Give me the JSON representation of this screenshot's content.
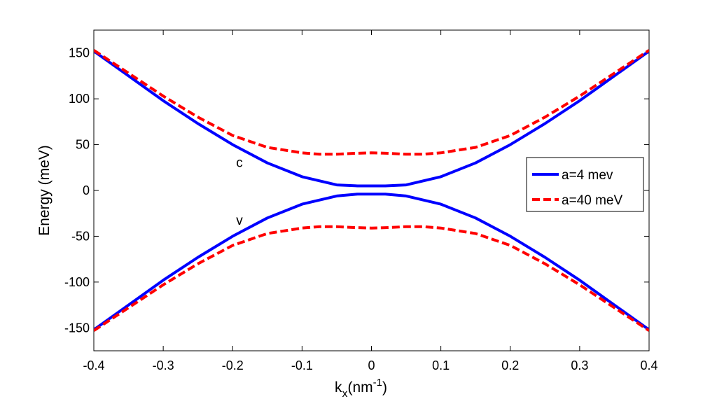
{
  "chart_data": {
    "type": "line",
    "title": "",
    "xlabel_main": "k",
    "xlabel_sub": "x",
    "xlabel_rest": "(nm",
    "xlabel_sup": "-1",
    "xlabel_close": ")",
    "ylabel": "Energy (meV)",
    "xlim": [
      -0.4,
      0.4
    ],
    "ylim": [
      -175,
      175
    ],
    "xticks": [
      -0.4,
      -0.3,
      -0.2,
      -0.1,
      0,
      0.1,
      0.2,
      0.3,
      0.4
    ],
    "xtick_labels": [
      "-0.4",
      "-0.3",
      "-0.2",
      "-0.1",
      "0",
      "0.1",
      "0.2",
      "0.3",
      "0.4"
    ],
    "yticks": [
      -150,
      -100,
      -50,
      0,
      50,
      100,
      150
    ],
    "ytick_labels": [
      "-150",
      "-100",
      "-50",
      "0",
      "50",
      "100",
      "150"
    ],
    "legend_position": "right",
    "colors": {
      "blue": "#0000ff",
      "red": "#ff0000"
    },
    "series": [
      {
        "name": "a=4 mev",
        "style": "solid",
        "color": "#0000ff",
        "branches": [
          {
            "x": [
              -0.4,
              -0.35,
              -0.3,
              -0.25,
              -0.2,
              -0.15,
              -0.1,
              -0.05,
              -0.02,
              0,
              0.02,
              0.05,
              0.1,
              0.15,
              0.2,
              0.25,
              0.3,
              0.35,
              0.4
            ],
            "y": [
              152,
              125,
              98,
              73,
              50,
              30,
              15,
              6,
              5,
              5,
              5,
              6,
              15,
              30,
              50,
              73,
              98,
              125,
              152
            ]
          },
          {
            "x": [
              -0.4,
              -0.35,
              -0.3,
              -0.25,
              -0.2,
              -0.15,
              -0.1,
              -0.05,
              -0.02,
              0,
              0.02,
              0.05,
              0.1,
              0.15,
              0.2,
              0.25,
              0.3,
              0.35,
              0.4
            ],
            "y": [
              -152,
              -125,
              -98,
              -73,
              -50,
              -30,
              -15,
              -6,
              -4,
              -4,
              -4,
              -6,
              -15,
              -30,
              -50,
              -73,
              -98,
              -125,
              -152
            ]
          }
        ]
      },
      {
        "name": "a=40 meV",
        "style": "dashed",
        "color": "#ff0000",
        "branches": [
          {
            "x": [
              -0.4,
              -0.35,
              -0.3,
              -0.25,
              -0.2,
              -0.15,
              -0.1,
              -0.075,
              -0.05,
              -0.025,
              0,
              0.025,
              0.05,
              0.075,
              0.1,
              0.15,
              0.2,
              0.25,
              0.3,
              0.35,
              0.4
            ],
            "y": [
              153,
              128,
              103,
              80,
              60,
              47,
              41,
              39.5,
              39.5,
              40.5,
              41,
              40.5,
              39.5,
              39.5,
              41,
              47,
              60,
              80,
              103,
              128,
              153
            ]
          },
          {
            "x": [
              -0.4,
              -0.35,
              -0.3,
              -0.25,
              -0.2,
              -0.15,
              -0.1,
              -0.075,
              -0.05,
              -0.025,
              0,
              0.025,
              0.05,
              0.075,
              0.1,
              0.15,
              0.2,
              0.25,
              0.3,
              0.35,
              0.4
            ],
            "y": [
              -153,
              -128,
              -103,
              -80,
              -60,
              -47,
              -41,
              -39.5,
              -39.5,
              -40.5,
              -41,
              -40.5,
              -39.5,
              -39.5,
              -41,
              -47,
              -60,
              -80,
              -103,
              -128,
              -153
            ]
          }
        ]
      }
    ],
    "annotations": [
      {
        "text": "c",
        "x": -0.2,
        "y": 30
      },
      {
        "text": "v",
        "x": -0.2,
        "y": -33
      }
    ]
  }
}
